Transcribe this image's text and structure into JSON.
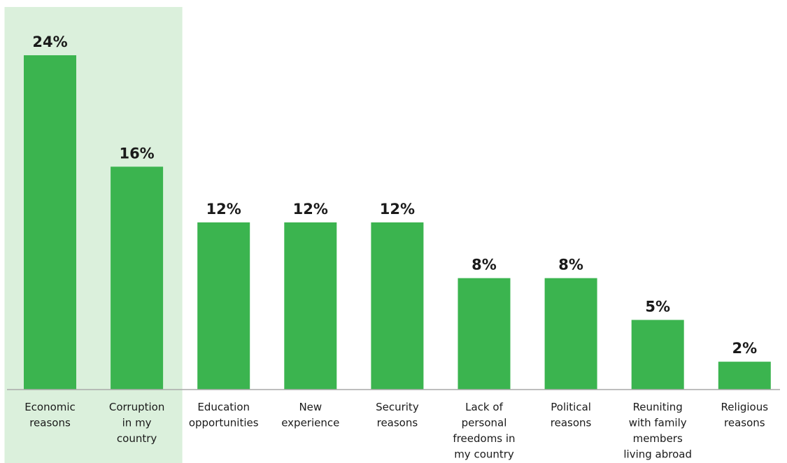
{
  "chart_data": {
    "type": "bar",
    "title": "",
    "xlabel": "",
    "ylabel": "",
    "categories": [
      [
        "Economic",
        "reasons"
      ],
      [
        "Corruption",
        "in my",
        "country"
      ],
      [
        "Education",
        "opportunities"
      ],
      [
        "New",
        "experience"
      ],
      [
        "Security",
        "reasons"
      ],
      [
        "Lack of",
        "personal",
        "freedoms in",
        "my country"
      ],
      [
        "Political",
        "reasons"
      ],
      [
        "Reuniting",
        "with family",
        "members",
        "living abroad"
      ],
      [
        "Religious",
        "reasons"
      ]
    ],
    "values": [
      24,
      16,
      12,
      12,
      12,
      8,
      8,
      5,
      2
    ],
    "value_labels": [
      "24%",
      "16%",
      "12%",
      "12%",
      "12%",
      "8%",
      "8%",
      "5%",
      "2%"
    ],
    "ylim": [
      0,
      24
    ],
    "grid": false,
    "legend": "none",
    "highlighted_categories": [
      0,
      1
    ],
    "colors": {
      "bar": "#3bb44f",
      "highlight": "#dbf0dc",
      "baseline": "#a9a9a9",
      "text": "#1a1a1a"
    }
  }
}
